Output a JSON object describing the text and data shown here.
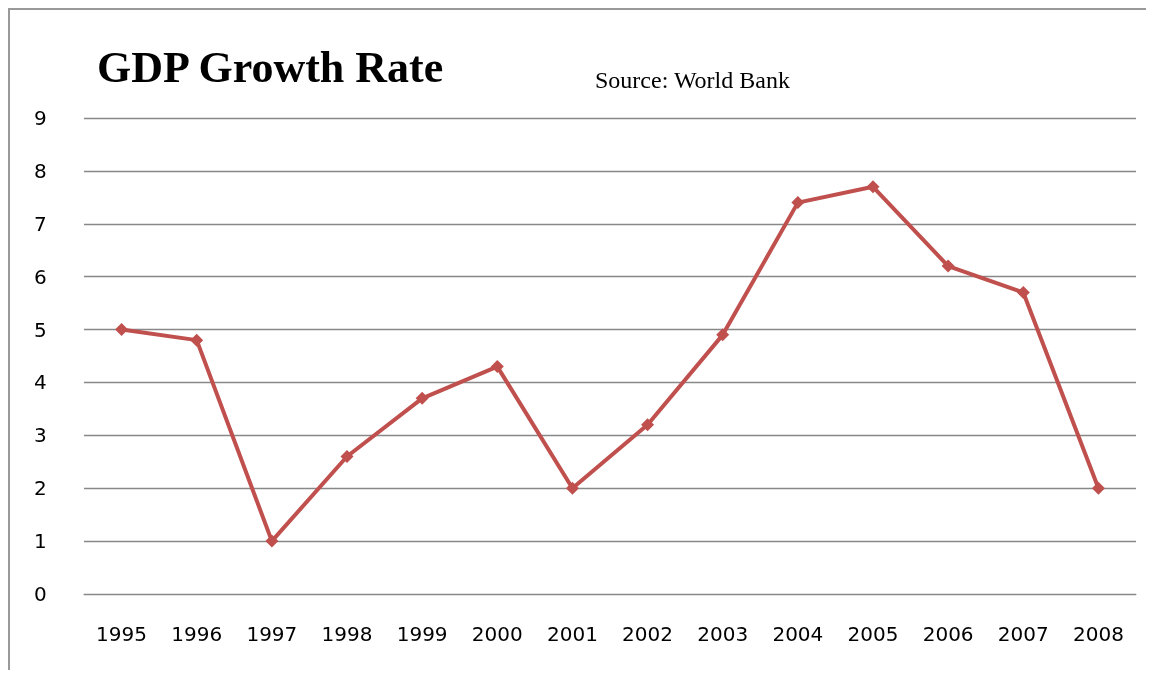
{
  "chart_data": {
    "type": "line",
    "title": "GDP Growth Rate",
    "annotations": [
      "Source: World Bank"
    ],
    "categories": [
      "1995",
      "1996",
      "1997",
      "1998",
      "1999",
      "2000",
      "2001",
      "2002",
      "2003",
      "2004",
      "2005",
      "2006",
      "2007",
      "2008"
    ],
    "series": [
      {
        "color": "#c0504d",
        "values": [
          5.0,
          4.8,
          1.0,
          2.6,
          3.7,
          4.3,
          2.0,
          3.2,
          4.9,
          7.4,
          7.7,
          6.2,
          5.7,
          2.0
        ]
      }
    ],
    "ylim": [
      0,
      9
    ],
    "yticks": [
      0,
      1,
      2,
      3,
      4,
      5,
      6,
      7,
      8,
      9
    ],
    "grid": "y",
    "marker": "diamond",
    "line_style": "solid"
  }
}
